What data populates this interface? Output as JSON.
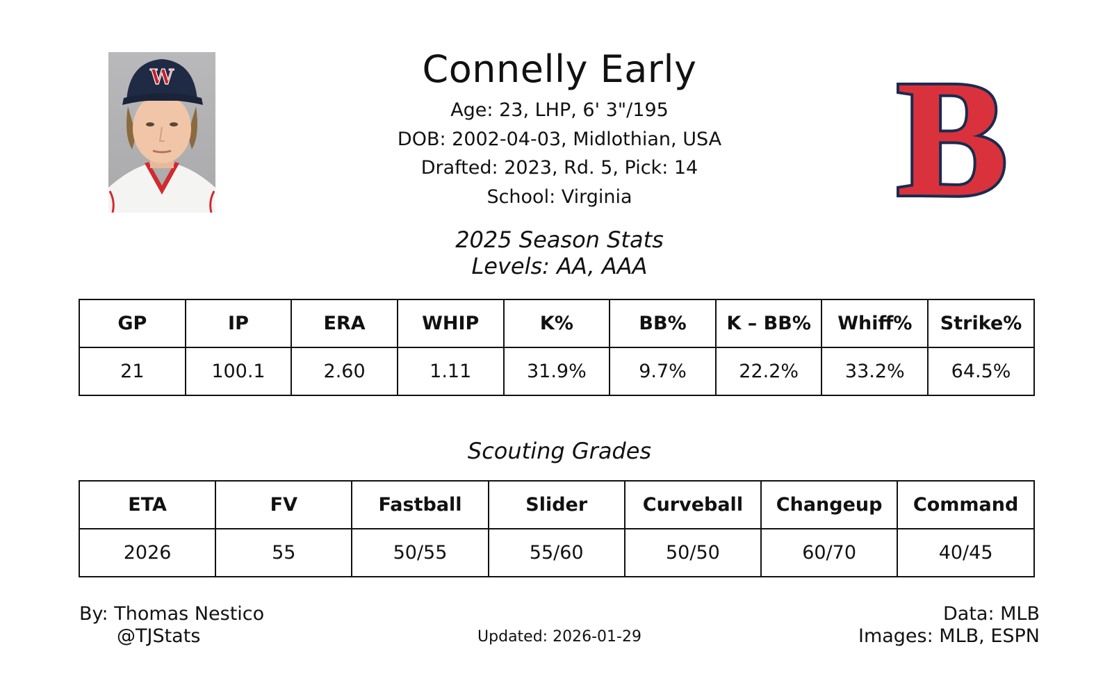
{
  "player": {
    "name": "Connelly Early",
    "age_line": "Age: 23, LHP, 6' 3\"/195",
    "dob_line": "DOB: 2002-04-03, Midlothian, USA",
    "draft_line": "Drafted: 2023, Rd. 5, Pick: 14",
    "school_line": "School: Virginia",
    "cap_letter": "W"
  },
  "team_logo": {
    "letter": "B",
    "fill": "#d9323c",
    "outline": "#1b2b4f"
  },
  "season": {
    "title": "2025 Season Stats",
    "levels": "Levels: AA, AAA",
    "headers": [
      "GP",
      "IP",
      "ERA",
      "WHIP",
      "K%",
      "BB%",
      "K – BB%",
      "Whiff%",
      "Strike%"
    ],
    "values": [
      "21",
      "100.1",
      "2.60",
      "1.11",
      "31.9%",
      "9.7%",
      "22.2%",
      "33.2%",
      "64.5%"
    ]
  },
  "scouting": {
    "title": "Scouting Grades",
    "headers": [
      "ETA",
      "FV",
      "Fastball",
      "Slider",
      "Curveball",
      "Changeup",
      "Command"
    ],
    "values": [
      "2026",
      "55",
      "50/55",
      "55/60",
      "50/50",
      "60/70",
      "40/45"
    ]
  },
  "footer": {
    "by": "By: Thomas Nestico",
    "handle": "@TJStats",
    "updated": "Updated: 2026-01-29",
    "data": "Data: MLB",
    "images": "Images: MLB, ESPN"
  }
}
